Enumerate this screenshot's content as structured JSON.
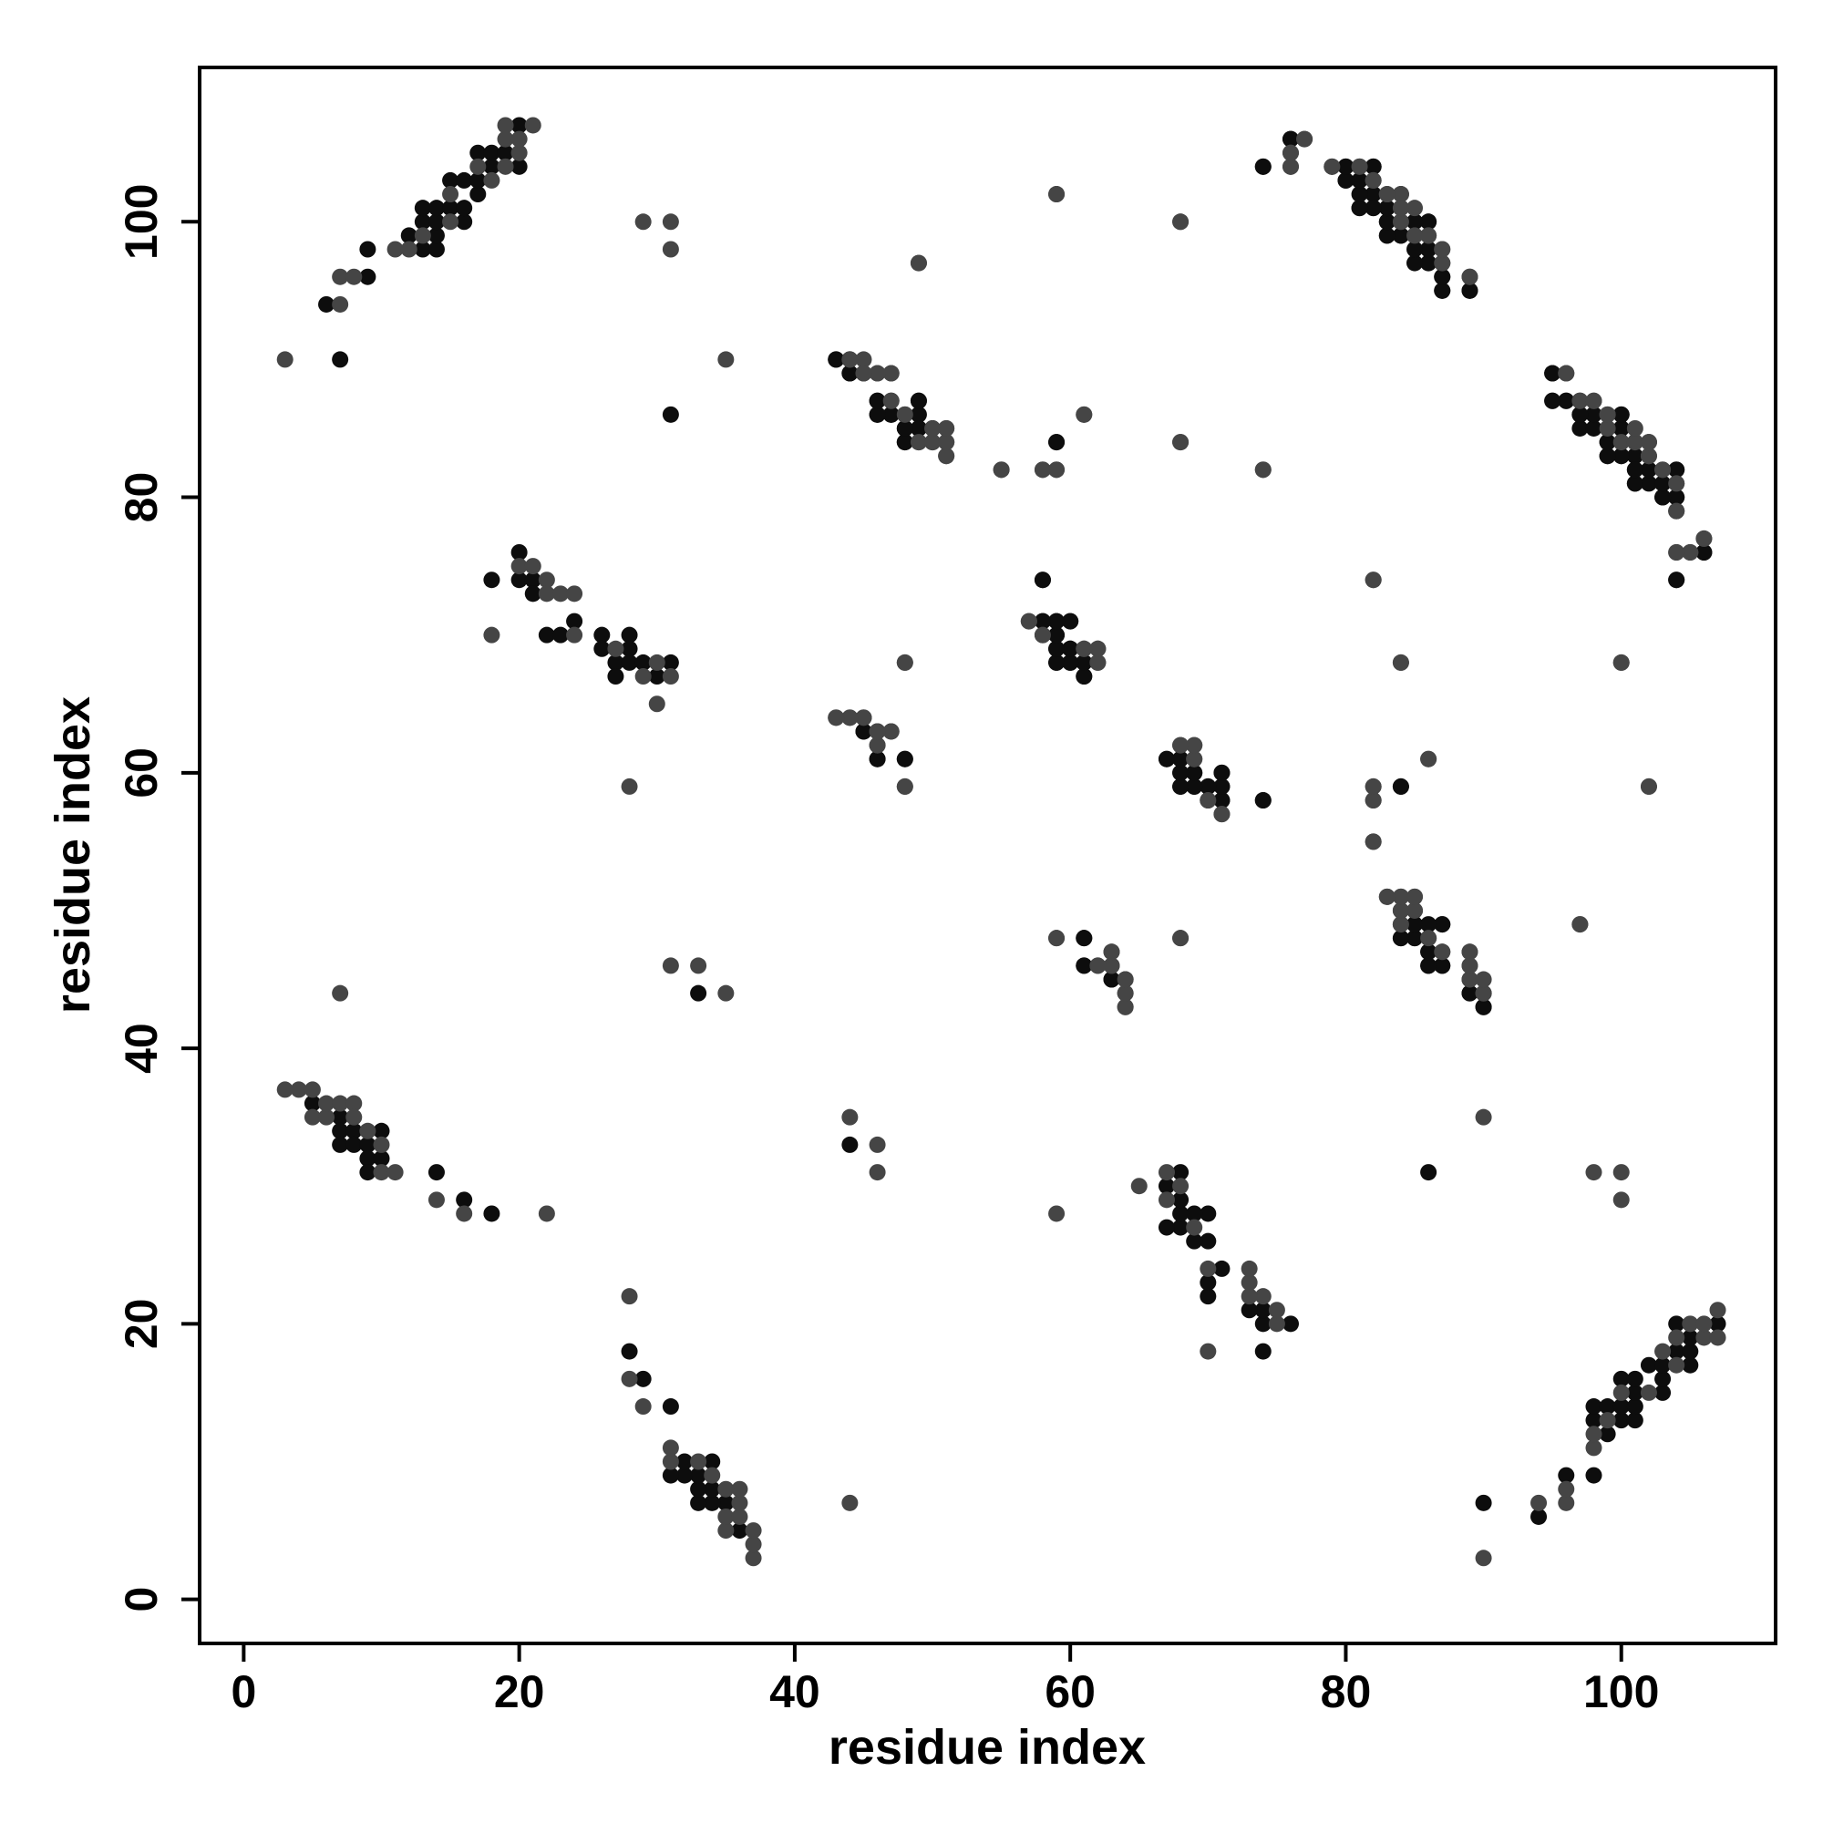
{
  "chart_data": {
    "type": "scatter",
    "xlabel": "residue index",
    "ylabel": "residue index",
    "xlim": [
      -3.2,
      111.2
    ],
    "ylim": [
      -3.2,
      111.2
    ],
    "xticks": [
      0,
      20,
      40,
      60,
      80,
      100
    ],
    "yticks": [
      0,
      20,
      40,
      60,
      80,
      100
    ],
    "grid": false,
    "series": [
      {
        "color": "#0d0d0d",
        "x": [
          7,
          6,
          9,
          9,
          12,
          13,
          13,
          13,
          14,
          14,
          14,
          14,
          15,
          15,
          16,
          16,
          16,
          17,
          17,
          17,
          18,
          18,
          19,
          20,
          20,
          5,
          7,
          7,
          7,
          8,
          8,
          9,
          9,
          9,
          10,
          10,
          14,
          16,
          18,
          18,
          20,
          20,
          21,
          21,
          22,
          23,
          24,
          26,
          26,
          27,
          27,
          28,
          28,
          28,
          29,
          30,
          31,
          31,
          33,
          43,
          44,
          45,
          46,
          46,
          47,
          47,
          48,
          48,
          49,
          49,
          49,
          50,
          45,
          46,
          48,
          58,
          58,
          59,
          59,
          59,
          60,
          59,
          60,
          60,
          61,
          61,
          59,
          61,
          61,
          63,
          64,
          67,
          68,
          68,
          68,
          69,
          69,
          70,
          70,
          71,
          71,
          71,
          74,
          74,
          76,
          79,
          80,
          80,
          81,
          81,
          81,
          82,
          82,
          82,
          83,
          83,
          84,
          84,
          84,
          85,
          85,
          86,
          86,
          86,
          87,
          87,
          87,
          89,
          95,
          95,
          96,
          97,
          97,
          98,
          98,
          99,
          99,
          100,
          100,
          100,
          101,
          101,
          101,
          102,
          102,
          103,
          103,
          104,
          104,
          104,
          106,
          84,
          84,
          84,
          84,
          85,
          85,
          86,
          86,
          86,
          87,
          87,
          89,
          90,
          90,
          90,
          94,
          98,
          96,
          99,
          98,
          100,
          101,
          98,
          99,
          100,
          101,
          101,
          103,
          100,
          101,
          103,
          102,
          103,
          105,
          104,
          105,
          105,
          104,
          107,
          36,
          35,
          34,
          33,
          34,
          33,
          33,
          32,
          31,
          34,
          32,
          31,
          29,
          28,
          74,
          76,
          74,
          74,
          73,
          70,
          70,
          71,
          70,
          69,
          68,
          67,
          70,
          69,
          68,
          68,
          67,
          68,
          86,
          44,
          90,
          89,
          89,
          87,
          86,
          87,
          86,
          85,
          84,
          87,
          86,
          85,
          85,
          63,
          61,
          61,
          74,
          71,
          71,
          70,
          69,
          71,
          68,
          69,
          68,
          68,
          67,
          84,
          48,
          46,
          45,
          45,
          61,
          61,
          60,
          59,
          60,
          59,
          59,
          58,
          60,
          59,
          58,
          58,
          104,
          106,
          104,
          104,
          103,
          104,
          103,
          101,
          104,
          102,
          101,
          100,
          99,
          101,
          100,
          99,
          100,
          99,
          100,
          98,
          97,
          97,
          96,
          95,
          95,
          89,
          87,
          87,
          86,
          85,
          86,
          85,
          84,
          83,
          86,
          85,
          83,
          83,
          82,
          81,
          84,
          81,
          81,
          80,
          82,
          80,
          74,
          76,
          59,
          50,
          49,
          48,
          49,
          48,
          48,
          47,
          46,
          49,
          46,
          44,
          44,
          43
        ],
        "values": [
          90,
          94,
          98,
          96,
          99,
          98,
          100,
          101,
          98,
          99,
          100,
          101,
          101,
          103,
          100,
          101,
          103,
          102,
          103,
          105,
          104,
          105,
          105,
          104,
          107,
          36,
          35,
          34,
          33,
          34,
          33,
          33,
          32,
          31,
          34,
          32,
          31,
          29,
          28,
          74,
          76,
          74,
          74,
          73,
          70,
          70,
          71,
          70,
          69,
          68,
          67,
          70,
          69,
          68,
          68,
          67,
          68,
          86,
          44,
          90,
          89,
          89,
          87,
          86,
          87,
          86,
          85,
          84,
          87,
          86,
          85,
          85,
          63,
          61,
          61,
          74,
          71,
          71,
          70,
          69,
          71,
          68,
          69,
          68,
          68,
          67,
          84,
          48,
          46,
          45,
          45,
          61,
          61,
          60,
          59,
          60,
          59,
          59,
          58,
          60,
          59,
          58,
          58,
          104,
          106,
          104,
          104,
          103,
          104,
          103,
          101,
          104,
          102,
          101,
          100,
          99,
          101,
          100,
          99,
          100,
          99,
          100,
          98,
          97,
          97,
          96,
          95,
          95,
          89,
          87,
          87,
          86,
          85,
          86,
          85,
          84,
          83,
          86,
          85,
          83,
          83,
          82,
          81,
          84,
          81,
          81,
          80,
          82,
          80,
          74,
          76,
          59,
          50,
          49,
          48,
          49,
          48,
          48,
          47,
          46,
          49,
          46,
          44,
          44,
          43,
          7,
          6,
          9,
          9,
          12,
          13,
          13,
          13,
          14,
          14,
          14,
          14,
          15,
          15,
          16,
          16,
          16,
          17,
          17,
          17,
          18,
          18,
          19,
          20,
          20,
          5,
          7,
          7,
          7,
          8,
          8,
          9,
          9,
          9,
          10,
          10,
          14,
          16,
          18,
          18,
          20,
          20,
          21,
          21,
          22,
          23,
          24,
          26,
          26,
          27,
          27,
          28,
          28,
          28,
          29,
          30,
          31,
          31,
          33,
          43,
          44,
          45,
          46,
          46,
          47,
          47,
          48,
          48,
          49,
          49,
          49,
          50,
          45,
          46,
          48,
          58,
          58,
          59,
          59,
          59,
          60,
          59,
          60,
          60,
          61,
          61,
          59,
          61,
          61,
          63,
          64,
          67,
          68,
          68,
          68,
          69,
          69,
          70,
          70,
          71,
          71,
          71,
          74,
          74,
          76,
          79,
          80,
          80,
          81,
          81,
          81,
          82,
          82,
          82,
          83,
          83,
          84,
          84,
          84,
          85,
          85,
          86,
          86,
          86,
          87,
          87,
          87,
          89,
          95,
          95,
          96,
          97,
          97,
          98,
          98,
          99,
          99,
          100,
          100,
          100,
          101,
          101,
          101,
          102,
          102,
          103,
          103,
          104,
          104,
          104,
          106,
          84,
          84,
          84,
          84,
          85,
          85,
          86,
          86,
          86,
          87,
          87,
          89,
          90,
          90
        ]
      },
      {
        "color": "#454545",
        "x": [
          3,
          7,
          7,
          8,
          11,
          12,
          13,
          15,
          15,
          17,
          18,
          19,
          19,
          19,
          20,
          20,
          21,
          3,
          4,
          5,
          5,
          6,
          6,
          7,
          8,
          8,
          9,
          10,
          10,
          11,
          14,
          16,
          22,
          18,
          20,
          21,
          22,
          22,
          23,
          24,
          24,
          27,
          29,
          30,
          30,
          31,
          28,
          29,
          31,
          31,
          35,
          31,
          33,
          35,
          7,
          44,
          45,
          46,
          47,
          48,
          49,
          50,
          51,
          51,
          51,
          55,
          49,
          43,
          44,
          45,
          46,
          46,
          47,
          48,
          48,
          57,
          58,
          61,
          62,
          62,
          58,
          59,
          61,
          59,
          68,
          68,
          74,
          59,
          62,
          63,
          63,
          64,
          64,
          68,
          68,
          69,
          69,
          71,
          76,
          76,
          77,
          82,
          83,
          84,
          85,
          86,
          87,
          89,
          96,
          97,
          98,
          99,
          99,
          100,
          101,
          102,
          103,
          104,
          104,
          104,
          105,
          106,
          82,
          84,
          100,
          82,
          82,
          86,
          102,
          82,
          97,
          83,
          84,
          85,
          85,
          87,
          89,
          89,
          89,
          90,
          90,
          94,
          96,
          96,
          98,
          98,
          99,
          100,
          102,
          104,
          103,
          104,
          106,
          107,
          105,
          106,
          107,
          37,
          37,
          37,
          35,
          35,
          36,
          36,
          36,
          35,
          34,
          33,
          31,
          31,
          29,
          28,
          28,
          70,
          75,
          75,
          74,
          73,
          73,
          73,
          70,
          69,
          67,
          68,
          65,
          67,
          59,
          100,
          100,
          98,
          90,
          46,
          46,
          44,
          44,
          90,
          90,
          89,
          89,
          86,
          84,
          84,
          85,
          84,
          83,
          82,
          97,
          64,
          64,
          64,
          63,
          62,
          63,
          59,
          68,
          71,
          70,
          69,
          69,
          68,
          82,
          82,
          86,
          102,
          100,
          84,
          82,
          48,
          46,
          47,
          46,
          44,
          43,
          48,
          62,
          62,
          61,
          57,
          105,
          104,
          106,
          103,
          102,
          102,
          101,
          99,
          98,
          96,
          89,
          87,
          87,
          86,
          85,
          84,
          84,
          83,
          82,
          81,
          79,
          76,
          76,
          77,
          74,
          68,
          68,
          59,
          58,
          61,
          59,
          55,
          49,
          51,
          51,
          51,
          50,
          47,
          47,
          46,
          45,
          44
        ],
        "values": [
          90,
          94,
          96,
          96,
          98,
          98,
          99,
          100,
          102,
          104,
          103,
          104,
          106,
          107,
          105,
          106,
          107,
          37,
          37,
          37,
          35,
          35,
          36,
          36,
          36,
          35,
          34,
          33,
          31,
          31,
          29,
          28,
          28,
          70,
          75,
          75,
          74,
          73,
          73,
          73,
          70,
          69,
          67,
          68,
          65,
          67,
          59,
          100,
          100,
          98,
          90,
          46,
          46,
          44,
          44,
          90,
          90,
          89,
          89,
          86,
          84,
          84,
          85,
          84,
          83,
          82,
          97,
          64,
          64,
          64,
          63,
          62,
          63,
          59,
          68,
          71,
          70,
          69,
          69,
          68,
          82,
          82,
          86,
          102,
          100,
          84,
          82,
          48,
          46,
          47,
          46,
          44,
          43,
          48,
          62,
          62,
          61,
          57,
          105,
          104,
          106,
          103,
          102,
          102,
          101,
          99,
          98,
          96,
          89,
          87,
          87,
          86,
          85,
          84,
          84,
          83,
          82,
          81,
          79,
          76,
          76,
          77,
          74,
          68,
          68,
          59,
          58,
          61,
          59,
          55,
          49,
          51,
          51,
          51,
          50,
          47,
          47,
          46,
          45,
          44,
          3,
          7,
          7,
          8,
          11,
          12,
          13,
          15,
          15,
          17,
          18,
          19,
          19,
          19,
          20,
          20,
          21,
          3,
          4,
          5,
          5,
          6,
          6,
          7,
          8,
          8,
          9,
          10,
          10,
          11,
          14,
          16,
          22,
          18,
          20,
          21,
          22,
          22,
          23,
          24,
          24,
          27,
          29,
          30,
          30,
          31,
          28,
          29,
          31,
          31,
          35,
          31,
          33,
          35,
          7,
          44,
          45,
          46,
          47,
          48,
          49,
          50,
          51,
          51,
          51,
          55,
          49,
          43,
          44,
          45,
          46,
          46,
          47,
          48,
          48,
          57,
          58,
          61,
          62,
          62,
          58,
          59,
          61,
          59,
          68,
          68,
          74,
          59,
          62,
          63,
          63,
          64,
          64,
          68,
          68,
          69,
          69,
          71,
          76,
          76,
          77,
          82,
          83,
          84,
          85,
          86,
          87,
          89,
          96,
          97,
          98,
          99,
          99,
          100,
          101,
          102,
          103,
          104,
          104,
          104,
          105,
          106,
          82,
          84,
          100,
          82,
          82,
          86,
          102,
          82,
          97,
          83,
          84,
          85,
          85,
          87,
          89,
          89,
          89,
          90
        ]
      }
    ]
  }
}
